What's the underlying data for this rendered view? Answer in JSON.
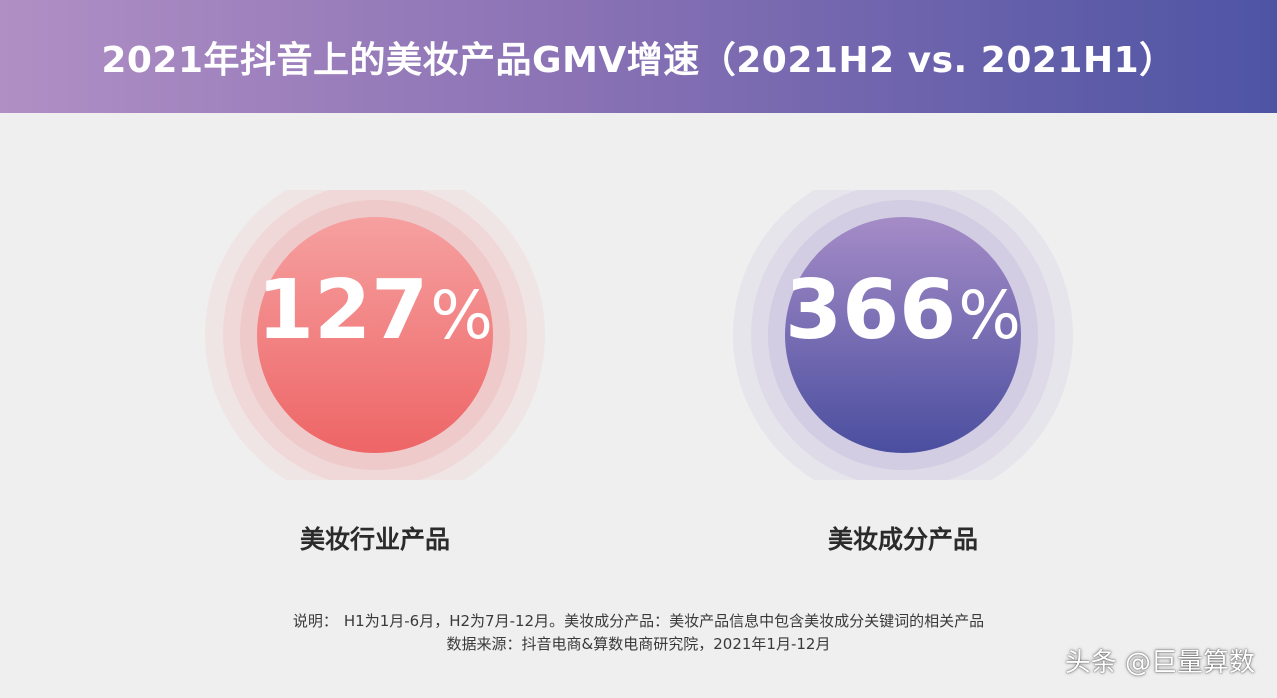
{
  "header": {
    "title": "2021年抖音上的美妆产品GMV增速（2021H2 vs. 2021H1）"
  },
  "colors": {
    "header_gradient": [
      "#b08fc4",
      "#4e54a4"
    ],
    "industry_circle": [
      "#f6a0a0",
      "#ee6566"
    ],
    "ingredient_circle": [
      "#a58cc7",
      "#4a4e9f"
    ]
  },
  "chart_data": {
    "type": "kpi",
    "items": [
      {
        "label": "美妆行业产品",
        "value": 127,
        "unit": "%"
      },
      {
        "label": "美妆成分产品",
        "value": 366,
        "unit": "%"
      }
    ]
  },
  "notes": {
    "prefix": "说明：",
    "line1": "H1为1月-6月，H2为7月-12月。美妆成分产品：美妆产品信息中包含美妆成分关键词的相关产品",
    "line2": "数据来源：抖音电商&算数电商研究院，2021年1月-12月"
  },
  "watermark": "头条 @巨量算数"
}
